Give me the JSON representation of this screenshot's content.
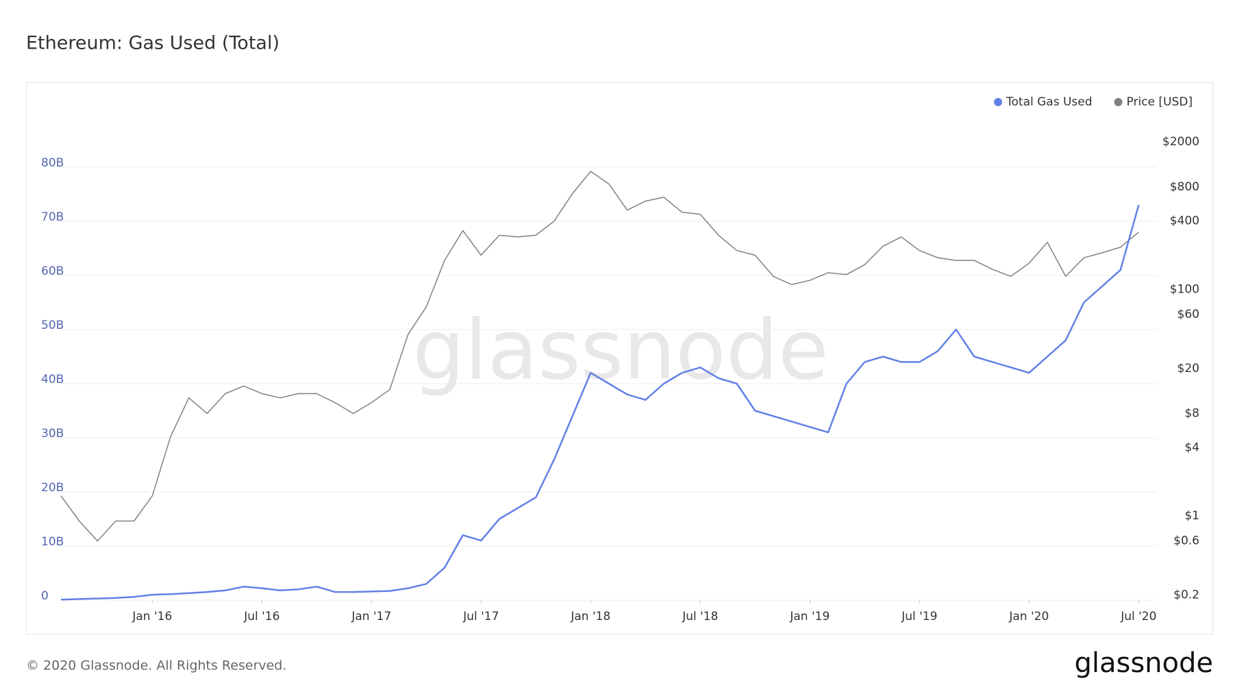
{
  "chart_data": {
    "type": "line",
    "title": "Ethereum: Gas Used (Total)",
    "watermark": "glassnode",
    "footer": "© 2020 Glassnode. All Rights Reserved.",
    "brand": "glassnode",
    "legend": "top-right",
    "grid": true,
    "x": [
      "2015-08",
      "2015-09",
      "2015-10",
      "2015-11",
      "2015-12",
      "2016-01",
      "2016-02",
      "2016-03",
      "2016-04",
      "2016-05",
      "2016-06",
      "2016-07",
      "2016-08",
      "2016-09",
      "2016-10",
      "2016-11",
      "2016-12",
      "2017-01",
      "2017-02",
      "2017-03",
      "2017-04",
      "2017-05",
      "2017-06",
      "2017-07",
      "2017-08",
      "2017-09",
      "2017-10",
      "2017-11",
      "2017-12",
      "2018-01",
      "2018-02",
      "2018-03",
      "2018-04",
      "2018-05",
      "2018-06",
      "2018-07",
      "2018-08",
      "2018-09",
      "2018-10",
      "2018-11",
      "2018-12",
      "2019-01",
      "2019-02",
      "2019-03",
      "2019-04",
      "2019-05",
      "2019-06",
      "2019-07",
      "2019-08",
      "2019-09",
      "2019-10",
      "2019-11",
      "2019-12",
      "2020-01",
      "2020-02",
      "2020-03",
      "2020-04",
      "2020-05",
      "2020-06",
      "2020-07"
    ],
    "xlim": [
      "2015-08",
      "2020-08"
    ],
    "xticks": [
      {
        "value": "2016-01",
        "label": "Jan '16"
      },
      {
        "value": "2016-07",
        "label": "Jul '16"
      },
      {
        "value": "2017-01",
        "label": "Jan '17"
      },
      {
        "value": "2017-07",
        "label": "Jul '17"
      },
      {
        "value": "2018-01",
        "label": "Jan '18"
      },
      {
        "value": "2018-07",
        "label": "Jul '18"
      },
      {
        "value": "2019-01",
        "label": "Jan '19"
      },
      {
        "value": "2019-07",
        "label": "Jul '19"
      },
      {
        "value": "2020-01",
        "label": "Jan '20"
      },
      {
        "value": "2020-07",
        "label": "Jul '20"
      }
    ],
    "ylim": [
      0,
      90
    ],
    "yticks": [
      0,
      {
        "value": 10,
        "label": "10B"
      },
      {
        "value": 20,
        "label": "20B"
      },
      {
        "value": 30,
        "label": "30B"
      },
      {
        "value": 40,
        "label": "40B"
      },
      {
        "value": 50,
        "label": "50B"
      },
      {
        "value": 60,
        "label": "60B"
      },
      {
        "value": 70,
        "label": "70B"
      },
      {
        "value": 80,
        "label": "80B"
      }
    ],
    "y2_log": true,
    "y2lim": [
      0.18,
      3600
    ],
    "y2ticks": [
      {
        "value": 0.2,
        "label": "$0.2"
      },
      {
        "value": 0.6,
        "label": "$0.6"
      },
      {
        "value": 1,
        "label": "$1"
      },
      {
        "value": 4,
        "label": "$4"
      },
      {
        "value": 8,
        "label": "$8"
      },
      {
        "value": 20,
        "label": "$20"
      },
      {
        "value": 60,
        "label": "$60"
      },
      {
        "value": 100,
        "label": "$100"
      },
      {
        "value": 400,
        "label": "$400"
      },
      {
        "value": 800,
        "label": "$800"
      },
      {
        "value": 2000,
        "label": "$2000"
      }
    ],
    "series": [
      {
        "name": "Total Gas Used",
        "color": "#6181e6",
        "values": [
          0.1,
          0.2,
          0.3,
          0.4,
          0.6,
          1.0,
          1.1,
          1.3,
          1.5,
          1.8,
          2.5,
          2.2,
          1.8,
          2.0,
          2.5,
          1.5,
          1.5,
          1.6,
          1.7,
          2.2,
          3.0,
          6,
          12,
          11,
          15,
          17,
          19,
          26,
          34,
          42,
          40,
          38,
          37,
          40,
          42,
          43,
          41,
          40,
          35,
          34,
          33,
          32,
          31,
          40,
          44,
          45,
          44,
          44,
          46,
          50,
          45,
          44,
          43,
          42,
          45,
          48,
          55,
          58,
          61,
          73
        ]
      },
      {
        "name": "Price [USD]",
        "color": "#808080",
        "axis": "y2",
        "values": [
          1.5,
          0.9,
          0.6,
          0.9,
          0.9,
          1.5,
          5,
          11,
          8,
          12,
          14,
          12,
          11,
          12,
          12,
          10,
          8,
          10,
          13,
          40,
          70,
          180,
          330,
          200,
          300,
          290,
          300,
          400,
          700,
          1100,
          850,
          500,
          600,
          650,
          480,
          460,
          300,
          220,
          200,
          130,
          110,
          120,
          140,
          135,
          165,
          240,
          290,
          220,
          190,
          180,
          180,
          150,
          130,
          170,
          260,
          130,
          190,
          210,
          235,
          320
        ]
      }
    ]
  }
}
